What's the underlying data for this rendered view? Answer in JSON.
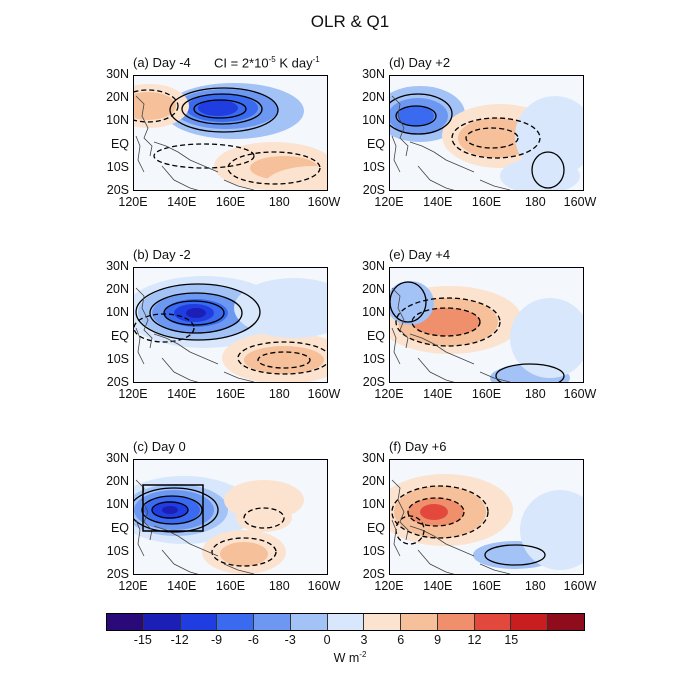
{
  "title": "OLR & Q1",
  "ci_label": "CI = 2*10",
  "ci_exponent": "-5",
  "ci_unit": "K day",
  "ci_unit_exponent": "-1",
  "lat_labels": [
    "30N",
    "20N",
    "10N",
    "EQ",
    "10S",
    "20S"
  ],
  "lon_labels": [
    "120E",
    "140E",
    "160E",
    "180",
    "160W"
  ],
  "panels": [
    {
      "label": "(a) Day -4"
    },
    {
      "label": "(b) Day -2"
    },
    {
      "label": "(c) Day 0"
    },
    {
      "label": "(d) Day +2"
    },
    {
      "label": "(e) Day +4"
    },
    {
      "label": "(f) Day +6"
    }
  ],
  "colorbar": {
    "ticks": [
      "-15",
      "-12",
      "-9",
      "-6",
      "-3",
      "0",
      "3",
      "6",
      "9",
      "12",
      "15"
    ],
    "unit": "W m",
    "unit_exponent": "-2",
    "colors": [
      "#2a0a78",
      "#1c1fb5",
      "#1f3de0",
      "#3a6af0",
      "#6d98f2",
      "#a3c2f6",
      "#d8e7fb",
      "#fbe3cf",
      "#f6c09a",
      "#ef8f6c",
      "#e2493c",
      "#c91e1f",
      "#8e0c1c"
    ]
  }
}
